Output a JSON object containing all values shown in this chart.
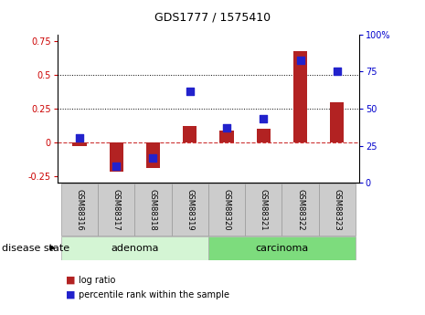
{
  "title": "GDS1777 / 1575410",
  "samples": [
    "GSM88316",
    "GSM88317",
    "GSM88318",
    "GSM88319",
    "GSM88320",
    "GSM88321",
    "GSM88322",
    "GSM88323"
  ],
  "log_ratio": [
    -0.03,
    -0.22,
    -0.19,
    0.12,
    0.09,
    0.1,
    0.68,
    0.3
  ],
  "percentile_rank": [
    30,
    11,
    17,
    62,
    37,
    43,
    83,
    75
  ],
  "ylim_left": [
    -0.3,
    0.8
  ],
  "ylim_right": [
    0,
    100
  ],
  "yticks_left": [
    -0.25,
    0.0,
    0.25,
    0.5,
    0.75
  ],
  "yticks_right": [
    0,
    25,
    50,
    75,
    100
  ],
  "hlines": [
    0.25,
    0.5
  ],
  "bar_color": "#b22222",
  "dot_color": "#2222cc",
  "bar_width": 0.38,
  "dot_size": 35,
  "adenoma_count": 4,
  "carcinoma_count": 4,
  "adenoma_label": "adenoma",
  "carcinoma_label": "carcinoma",
  "disease_state_label": "disease state",
  "legend_bar_label": "log ratio",
  "legend_dot_label": "percentile rank within the sample",
  "adenoma_color": "#d4f5d4",
  "carcinoma_color": "#7ddc7d",
  "tick_color_left": "#cc0000",
  "tick_color_right": "#0000cc",
  "zero_line_color": "#cc3333",
  "label_box_color": "#cccccc",
  "label_box_edge": "#999999",
  "background_color": "#ffffff",
  "title_fontsize": 9,
  "tick_fontsize": 7,
  "sample_fontsize": 6,
  "disease_fontsize": 8,
  "legend_fontsize": 7
}
